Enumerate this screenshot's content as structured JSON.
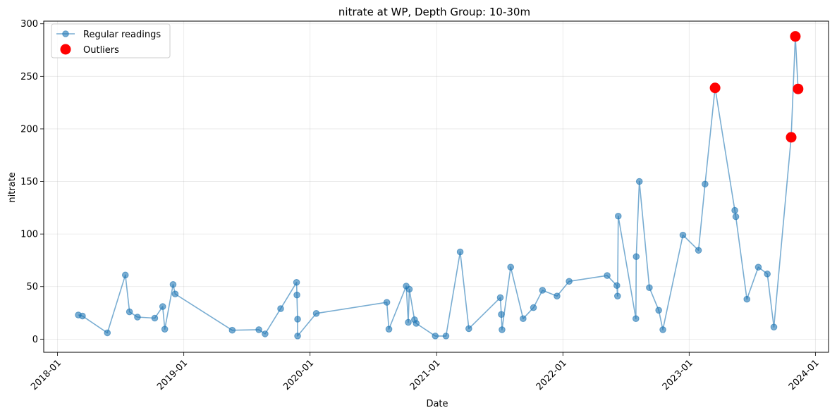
{
  "chart_data": {
    "type": "scatter",
    "title": "nitrate at WP, Depth Group: 10-30m",
    "xlabel": "Date",
    "ylabel": "nitrate",
    "xlim": [
      "2017-11-22",
      "2024-02-08"
    ],
    "ylim": [
      -12.5,
      302.5
    ],
    "x_ticks": [
      "2018-01",
      "2019-01",
      "2020-01",
      "2021-01",
      "2022-01",
      "2023-01",
      "2024-01"
    ],
    "y_ticks": [
      0,
      50,
      100,
      150,
      200,
      250,
      300
    ],
    "grid": true,
    "legend_position": "upper-left",
    "series": [
      {
        "name": "Regular readings",
        "style": "line-marker",
        "color": "#1f77b4",
        "points": [
          [
            "2018-03-02",
            23
          ],
          [
            "2018-03-14",
            22
          ],
          [
            "2018-05-25",
            6
          ],
          [
            "2018-07-16",
            61
          ],
          [
            "2018-07-28",
            26
          ],
          [
            "2018-08-20",
            21
          ],
          [
            "2018-10-09",
            20
          ],
          [
            "2018-11-01",
            31
          ],
          [
            "2018-11-07",
            9.5
          ],
          [
            "2018-12-01",
            52
          ],
          [
            "2018-12-07",
            43
          ],
          [
            "2019-05-21",
            8.5
          ],
          [
            "2019-08-06",
            9
          ],
          [
            "2019-08-24",
            5
          ],
          [
            "2019-10-08",
            29
          ],
          [
            "2019-11-23",
            54
          ],
          [
            "2019-11-24",
            42
          ],
          [
            "2019-11-26",
            19
          ],
          [
            "2019-11-26",
            3
          ],
          [
            "2020-01-19",
            24.5
          ],
          [
            "2020-08-10",
            35
          ],
          [
            "2020-08-16",
            9.5
          ],
          [
            "2020-10-05",
            50.5
          ],
          [
            "2020-10-11",
            16
          ],
          [
            "2020-10-14",
            47.5
          ],
          [
            "2020-10-29",
            18.5
          ],
          [
            "2020-11-03",
            15
          ],
          [
            "2020-12-28",
            3
          ],
          [
            "2021-01-28",
            3
          ],
          [
            "2021-03-10",
            83
          ],
          [
            "2021-04-04",
            10
          ],
          [
            "2021-07-04",
            39.5
          ],
          [
            "2021-07-07",
            23.5
          ],
          [
            "2021-07-09",
            9
          ],
          [
            "2021-08-03",
            68.5
          ],
          [
            "2021-09-08",
            19.5
          ],
          [
            "2021-10-08",
            30
          ],
          [
            "2021-11-03",
            46.5
          ],
          [
            "2021-12-15",
            41
          ],
          [
            "2022-01-19",
            55
          ],
          [
            "2022-05-09",
            60.5
          ],
          [
            "2022-06-06",
            51
          ],
          [
            "2022-06-08",
            41
          ],
          [
            "2022-06-10",
            117
          ],
          [
            "2022-07-31",
            19.5
          ],
          [
            "2022-08-01",
            78.5
          ],
          [
            "2022-08-10",
            150
          ],
          [
            "2022-09-08",
            49
          ],
          [
            "2022-10-05",
            27.5
          ],
          [
            "2022-10-17",
            9
          ],
          [
            "2022-12-14",
            99
          ],
          [
            "2023-01-28",
            84.5
          ],
          [
            "2023-02-16",
            147.5
          ],
          [
            "2023-03-17",
            239
          ],
          [
            "2023-05-13",
            122.5
          ],
          [
            "2023-05-16",
            116.5
          ],
          [
            "2023-06-17",
            38
          ],
          [
            "2023-07-20",
            68.5
          ],
          [
            "2023-08-15",
            62
          ],
          [
            "2023-09-03",
            11.5
          ],
          [
            "2023-10-23",
            192
          ],
          [
            "2023-11-04",
            288
          ],
          [
            "2023-11-12",
            238
          ]
        ]
      },
      {
        "name": "Outliers",
        "style": "marker",
        "color": "#ff0000",
        "points": [
          [
            "2023-03-17",
            239
          ],
          [
            "2023-10-23",
            192
          ],
          [
            "2023-11-04",
            288
          ],
          [
            "2023-11-12",
            238
          ]
        ]
      }
    ]
  }
}
